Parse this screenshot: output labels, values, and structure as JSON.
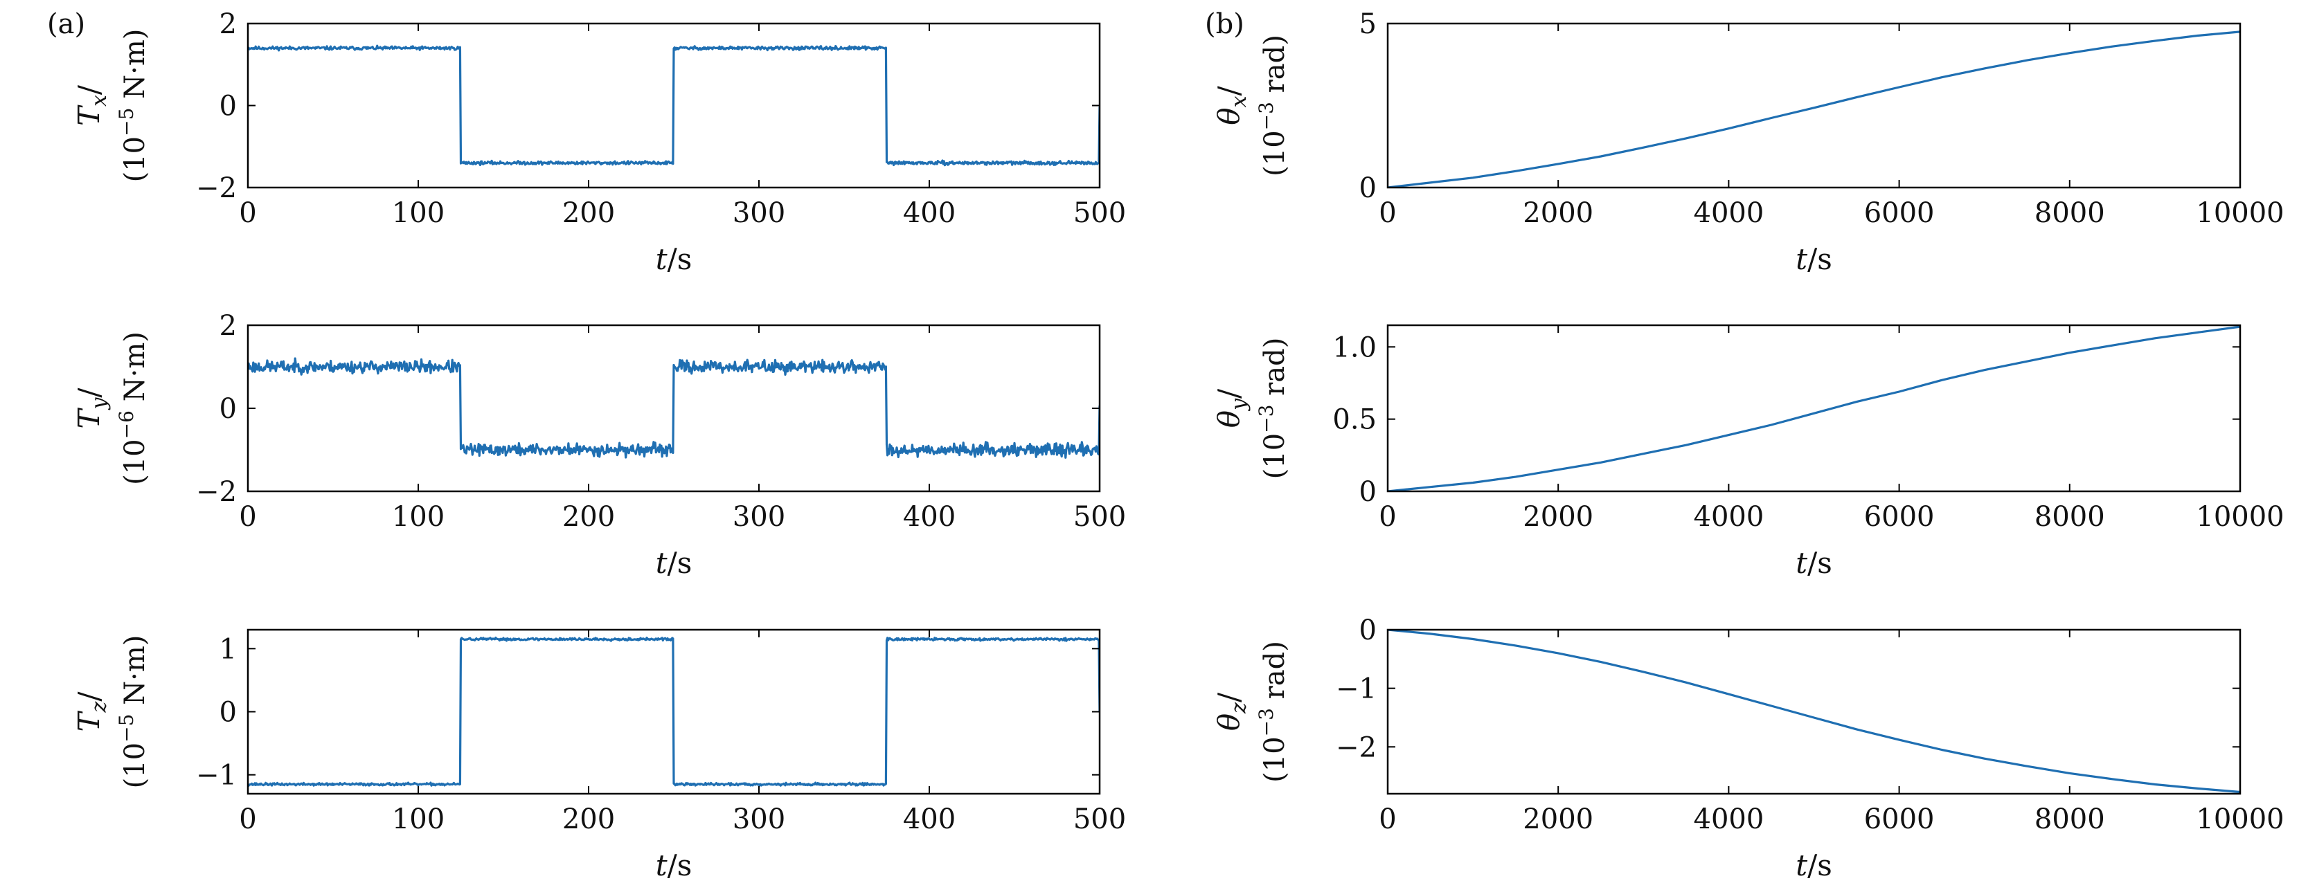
{
  "colors": {
    "line": "#1f6fb2",
    "axis": "#000000",
    "text": "#111111"
  },
  "panel_labels": [
    "(a)",
    "(b)"
  ],
  "chart_data": [
    {
      "id": "Tx",
      "panel": "(a)",
      "type": "line",
      "ylabel_main": "T",
      "ylabel_sub": "x",
      "ylabel_unit_pre": "(10",
      "ylabel_exp": "−5",
      "ylabel_unit_post": " N·m)",
      "xlabel_main": "t",
      "xlabel_unit": "/s",
      "xlim": [
        0,
        500
      ],
      "ylim": [
        -2,
        2
      ],
      "xticks": [
        0,
        100,
        200,
        300,
        400,
        500
      ],
      "xtick_labels": [
        "0",
        "100",
        "200",
        "300",
        "400",
        "500"
      ],
      "yticks": [
        -2,
        0,
        2
      ],
      "ytick_labels": [
        "−2",
        "0",
        "2"
      ],
      "series": [
        {
          "name": "T_x",
          "kind": "square",
          "period": 250,
          "amplitude": 1.4,
          "start_sign": 1,
          "noise": 0.025,
          "seed": 11
        }
      ]
    },
    {
      "id": "Ty",
      "panel": "(a)",
      "type": "line",
      "ylabel_main": "T",
      "ylabel_sub": "y",
      "ylabel_unit_pre": "(10",
      "ylabel_exp": "−6",
      "ylabel_unit_post": " N·m)",
      "xlabel_main": "t",
      "xlabel_unit": "/s",
      "xlim": [
        0,
        500
      ],
      "ylim": [
        -2,
        2
      ],
      "xticks": [
        0,
        100,
        200,
        300,
        400,
        500
      ],
      "xtick_labels": [
        "0",
        "100",
        "200",
        "300",
        "400",
        "500"
      ],
      "yticks": [
        -2,
        0,
        2
      ],
      "ytick_labels": [
        "−2",
        "0",
        "2"
      ],
      "series": [
        {
          "name": "T_y",
          "kind": "square",
          "period": 250,
          "amplitude": 1.0,
          "start_sign": 1,
          "noise": 0.09,
          "seed": 23
        }
      ]
    },
    {
      "id": "Tz",
      "panel": "(a)",
      "type": "line",
      "ylabel_main": "T",
      "ylabel_sub": "z",
      "ylabel_unit_pre": "(10",
      "ylabel_exp": "−5",
      "ylabel_unit_post": " N·m)",
      "xlabel_main": "t",
      "xlabel_unit": "/s",
      "xlim": [
        0,
        500
      ],
      "ylim": [
        -1.3,
        1.3
      ],
      "xticks": [
        0,
        100,
        200,
        300,
        400,
        500
      ],
      "xtick_labels": [
        "0",
        "100",
        "200",
        "300",
        "400",
        "500"
      ],
      "yticks": [
        -1,
        0,
        1
      ],
      "ytick_labels": [
        "−1",
        "0",
        "1"
      ],
      "series": [
        {
          "name": "T_z",
          "kind": "square",
          "period": 250,
          "amplitude": 1.15,
          "start_sign": -1,
          "noise": 0.012,
          "seed": 37
        }
      ]
    },
    {
      "id": "thx",
      "panel": "(b)",
      "type": "line",
      "ylabel_main": "θ",
      "ylabel_sub": "x",
      "ylabel_unit_pre": "(10",
      "ylabel_exp": "−3",
      "ylabel_unit_post": " rad)",
      "xlabel_main": "t",
      "xlabel_unit": "/s",
      "xlim": [
        0,
        10000
      ],
      "ylim": [
        0,
        5
      ],
      "xticks": [
        0,
        2000,
        4000,
        6000,
        8000,
        10000
      ],
      "xtick_labels": [
        "0",
        "2000",
        "4000",
        "6000",
        "8000",
        "10000"
      ],
      "yticks": [
        0,
        5
      ],
      "ytick_labels": [
        "0",
        "5"
      ],
      "series": [
        {
          "name": "theta_x",
          "x": [
            0,
            500,
            1000,
            1500,
            2000,
            2500,
            3000,
            3500,
            4000,
            4500,
            5000,
            5500,
            6000,
            6500,
            7000,
            7500,
            8000,
            8500,
            9000,
            9500,
            10000
          ],
          "y": [
            0,
            0.15,
            0.3,
            0.5,
            0.72,
            0.95,
            1.22,
            1.5,
            1.8,
            2.12,
            2.43,
            2.75,
            3.06,
            3.36,
            3.63,
            3.88,
            4.1,
            4.3,
            4.47,
            4.63,
            4.75
          ]
        }
      ]
    },
    {
      "id": "thy",
      "panel": "(b)",
      "type": "line",
      "ylabel_main": "θ",
      "ylabel_sub": "y",
      "ylabel_unit_pre": "(10",
      "ylabel_exp": "−3",
      "ylabel_unit_post": " rad)",
      "xlabel_main": "t",
      "xlabel_unit": "/s",
      "xlim": [
        0,
        10000
      ],
      "ylim": [
        0,
        1.15
      ],
      "xticks": [
        0,
        2000,
        4000,
        6000,
        8000,
        10000
      ],
      "xtick_labels": [
        "0",
        "2000",
        "4000",
        "6000",
        "8000",
        "10000"
      ],
      "yticks": [
        0,
        0.5,
        1.0
      ],
      "ytick_labels": [
        "0",
        "0.5",
        "1.0"
      ],
      "series": [
        {
          "name": "theta_y",
          "x": [
            0,
            500,
            1000,
            1500,
            2000,
            2500,
            3000,
            3500,
            4000,
            4500,
            5000,
            5500,
            6000,
            6500,
            7000,
            7500,
            8000,
            8500,
            9000,
            9500,
            10000
          ],
          "y": [
            0,
            0.03,
            0.06,
            0.1,
            0.15,
            0.2,
            0.26,
            0.32,
            0.39,
            0.46,
            0.54,
            0.62,
            0.69,
            0.77,
            0.84,
            0.9,
            0.96,
            1.01,
            1.06,
            1.1,
            1.14
          ]
        }
      ]
    },
    {
      "id": "thz",
      "panel": "(b)",
      "type": "line",
      "ylabel_main": "θ",
      "ylabel_sub": "z",
      "ylabel_unit_pre": "(10",
      "ylabel_exp": "−3",
      "ylabel_unit_post": " rad)",
      "xlabel_main": "t",
      "xlabel_unit": "/s",
      "xlim": [
        0,
        10000
      ],
      "ylim": [
        -2.8,
        0
      ],
      "xticks": [
        0,
        2000,
        4000,
        6000,
        8000,
        10000
      ],
      "xtick_labels": [
        "0",
        "2000",
        "4000",
        "6000",
        "8000",
        "10000"
      ],
      "yticks": [
        -2,
        -1,
        0
      ],
      "ytick_labels": [
        "−2",
        "−1",
        "0"
      ],
      "series": [
        {
          "name": "theta_z",
          "x": [
            0,
            500,
            1000,
            1500,
            2000,
            2500,
            3000,
            3500,
            4000,
            4500,
            5000,
            5500,
            6000,
            6500,
            7000,
            7500,
            8000,
            8500,
            9000,
            9500,
            10000
          ],
          "y": [
            0,
            -0.07,
            -0.16,
            -0.27,
            -0.4,
            -0.55,
            -0.72,
            -0.9,
            -1.1,
            -1.3,
            -1.5,
            -1.7,
            -1.88,
            -2.05,
            -2.2,
            -2.33,
            -2.45,
            -2.55,
            -2.64,
            -2.71,
            -2.77
          ]
        }
      ]
    }
  ]
}
